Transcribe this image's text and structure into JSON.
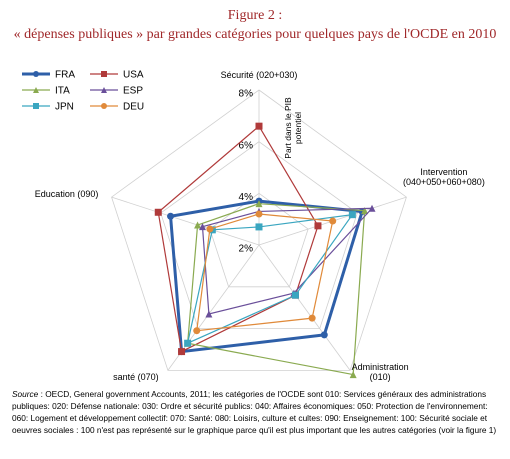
{
  "chart_data": {
    "type": "radar",
    "title": "Figure 2 :",
    "subtitle": "« dépenses publiques » par grandes catégories pour quelques pays de l'OCDE en 2010",
    "radial_axis_label": "Part dans le PIB potentiel",
    "categories": [
      "Sécurité (020+030)",
      "Intervention (040+050+060+080)",
      "Administration (010)",
      "santé (070)",
      "Education (090)"
    ],
    "rlim": [
      2,
      8
    ],
    "rticks": [
      {
        "value": 2,
        "label": "2%"
      },
      {
        "value": 4,
        "label": "4%"
      },
      {
        "value": 6,
        "label": "6%"
      },
      {
        "value": 8,
        "label": "8%"
      }
    ],
    "grid": true,
    "legend": "top-left",
    "series": [
      {
        "name": "FRA",
        "color": "#2e5fa8",
        "marker": "circle",
        "width": 3,
        "values": [
          3.7,
          6.2,
          6.3,
          7.1,
          5.6
        ]
      },
      {
        "name": "USA",
        "color": "#b03a3a",
        "marker": "square",
        "width": 1.2,
        "values": [
          6.6,
          4.4,
          4.4,
          7.1,
          6.1
        ]
      },
      {
        "name": "ITA",
        "color": "#8aaa50",
        "marker": "triangle",
        "width": 1.2,
        "values": [
          3.6,
          6.3,
          8.2,
          6.7,
          4.5
        ]
      },
      {
        "name": "ESP",
        "color": "#6a4f9a",
        "marker": "triangle",
        "width": 1.2,
        "values": [
          3.3,
          6.6,
          4.3,
          5.3,
          4.3
        ]
      },
      {
        "name": "JPN",
        "color": "#3aa6c0",
        "marker": "square",
        "width": 1.2,
        "values": [
          2.7,
          5.8,
          4.4,
          6.7,
          3.9
        ]
      },
      {
        "name": "DEU",
        "color": "#e08a3a",
        "marker": "circle",
        "width": 1.2,
        "values": [
          3.2,
          5.0,
          5.5,
          6.1,
          4.0
        ]
      }
    ],
    "source_label": "Source",
    "source_text": " : OECD,  General government Accounts, 2011; les catégories de l'OCDE sont 010: Services généraux des administrations publiques: 020: Défense nationale: 030: Ordre et sécurité publics: 040: Affaires économiques: 050: Protection de l'environnement: 060: Logement et développement collectif: 070: Santé: 080: Loisirs, culture et cultes: 090: Enseignement: 100: Sécurité sociale et oeuvres sociales : 100 n'est pas représenté sur le graphique parce qu'il est plus important que les autres catégories (voir la figure 1)"
  }
}
